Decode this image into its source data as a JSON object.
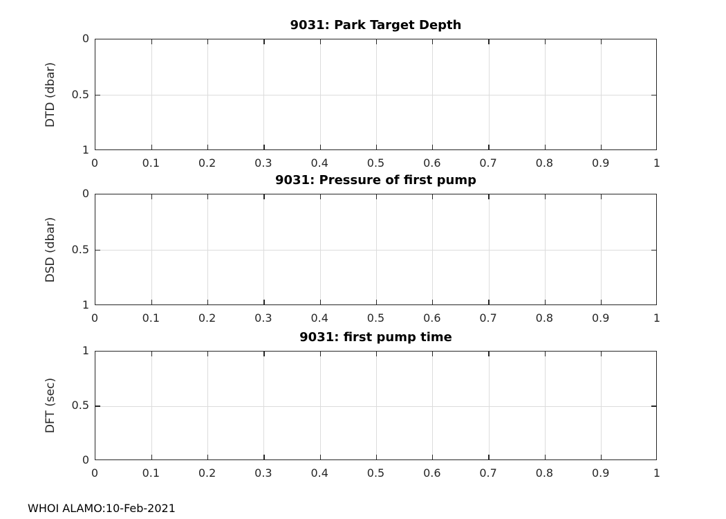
{
  "figure": {
    "footer": "WHOI ALAMO:10-Feb-2021",
    "background": "#ffffff",
    "axis_color": "#262626",
    "grid_color": "#dcdcdc",
    "title_color": "#000000"
  },
  "chart_data": [
    {
      "type": "line",
      "title": "9031: Park Target Depth",
      "xlabel": "",
      "ylabel": "DTD (dbar)",
      "xlim": [
        0,
        1
      ],
      "ylim": [
        0,
        1
      ],
      "y_direction": "reversed",
      "grid": true,
      "legend": "none",
      "x_ticks": [
        0,
        0.1,
        0.2,
        0.3,
        0.4,
        0.5,
        0.6,
        0.7,
        0.8,
        0.9,
        1
      ],
      "x_tick_labels": [
        "0",
        "0.1",
        "0.2",
        "0.3",
        "0.4",
        "0.5",
        "0.6",
        "0.7",
        "0.8",
        "0.9",
        "1"
      ],
      "y_ticks": [
        0,
        0.5,
        1
      ],
      "y_tick_labels": [
        "0",
        "0.5",
        "1"
      ],
      "series": []
    },
    {
      "type": "line",
      "title": "9031: Pressure of first pump",
      "xlabel": "",
      "ylabel": "DSD (dbar)",
      "xlim": [
        0,
        1
      ],
      "ylim": [
        0,
        1
      ],
      "y_direction": "reversed",
      "grid": true,
      "legend": "none",
      "x_ticks": [
        0,
        0.1,
        0.2,
        0.3,
        0.4,
        0.5,
        0.6,
        0.7,
        0.8,
        0.9,
        1
      ],
      "x_tick_labels": [
        "0",
        "0.1",
        "0.2",
        "0.3",
        "0.4",
        "0.5",
        "0.6",
        "0.7",
        "0.8",
        "0.9",
        "1"
      ],
      "y_ticks": [
        0,
        0.5,
        1
      ],
      "y_tick_labels": [
        "0",
        "0.5",
        "1"
      ],
      "series": []
    },
    {
      "type": "line",
      "title": "9031: first pump time",
      "xlabel": "",
      "ylabel": "DFT (sec)",
      "xlim": [
        0,
        1
      ],
      "ylim": [
        0,
        1
      ],
      "y_direction": "normal",
      "grid": true,
      "legend": "none",
      "x_ticks": [
        0,
        0.1,
        0.2,
        0.3,
        0.4,
        0.5,
        0.6,
        0.7,
        0.8,
        0.9,
        1
      ],
      "x_tick_labels": [
        "0",
        "0.1",
        "0.2",
        "0.3",
        "0.4",
        "0.5",
        "0.6",
        "0.7",
        "0.8",
        "0.9",
        "1"
      ],
      "y_ticks": [
        0,
        0.5,
        1
      ],
      "y_tick_labels": [
        "0",
        "0.5",
        "1"
      ],
      "series": []
    }
  ]
}
